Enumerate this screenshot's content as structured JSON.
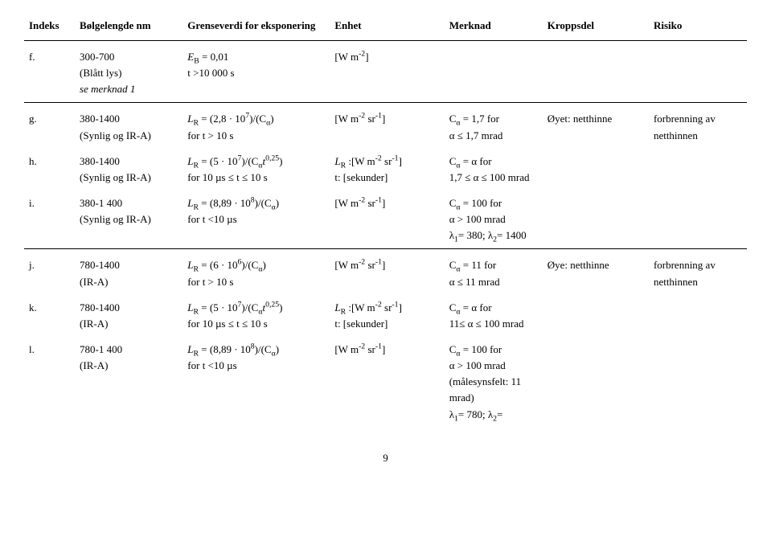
{
  "headers": {
    "indeks": "Indeks",
    "bolge": "Bølgelengde nm",
    "grense": "Grenseverdi for eksponering",
    "enhet": "Enhet",
    "merknad": "Merknad",
    "kroppsdel": "Kroppsdel",
    "risiko": "Risiko"
  },
  "rows": {
    "f": {
      "idx": "f.",
      "wave1": "300-700",
      "wave2": "(Blått lys)",
      "wave3": "se merknad 1",
      "limit1_a": "E",
      "limit1_b": "B",
      "limit1_c": " = 0,01",
      "limit2": "t >10 000 s",
      "unit1_a": "[W m",
      "unit1_b": "-2",
      "unit1_c": "]"
    },
    "g": {
      "idx": "g.",
      "wave1": "380-1400",
      "wave2": "(Synlig og IR-A)",
      "limit1_a": "L",
      "limit1_b": "R",
      "limit1_c": " = (2,8 · 10",
      "limit1_d": "7",
      "limit1_e": ")/(C",
      "limit1_f": "α",
      "limit1_g": ")",
      "limit2": "for t > 10 s",
      "unit1_a": "[W m",
      "unit1_b": "-2",
      "unit1_c": " sr",
      "unit1_d": "-1",
      "unit1_e": "]",
      "note1_a": "C",
      "note1_b": "α",
      "note1_c": " = 1,7 for",
      "note2": "α ≤ 1,7 mrad",
      "body": "Øyet: netthinne",
      "risk": "forbrenning av netthinnen"
    },
    "h": {
      "idx": "h.",
      "wave1": "380-1400",
      "wave2": "(Synlig og IR-A)",
      "limit1_a": "L",
      "limit1_b": "R",
      "limit1_c": " = (5 · 10",
      "limit1_d": "7",
      "limit1_e": ")/(C",
      "limit1_f": "α",
      "limit1_g": "t",
      "limit1_h": "0,25",
      "limit1_i": ")",
      "limit2": "for 10 µs ≤ t ≤ 10 s",
      "unit1_a": "L",
      "unit1_b": "R",
      "unit1_c": " :[W m",
      "unit1_d": "-2",
      "unit1_e": " sr",
      "unit1_f": "-1",
      "unit1_g": "]",
      "unit2": "t: [sekunder]",
      "note1_a": "C",
      "note1_b": "α",
      "note1_c": " = α for",
      "note2": "1,7 ≤ α ≤ 100 mrad"
    },
    "i": {
      "idx": "i.",
      "wave1": "380-1 400",
      "wave2": "(Synlig og IR-A)",
      "limit1_a": "L",
      "limit1_b": "R",
      "limit1_c": " = (8,89 · 10",
      "limit1_d": "8",
      "limit1_e": ")/(C",
      "limit1_f": "α",
      "limit1_g": ")",
      "limit2": "for t <10 µs",
      "unit1_a": "[W m",
      "unit1_b": "-2",
      "unit1_c": " sr",
      "unit1_d": "-1",
      "unit1_e": "]",
      "note1_a": "C",
      "note1_b": "α",
      "note1_c": " = 100 for",
      "note2": "α > 100 mrad",
      "note3_a": "λ",
      "note3_b": "1",
      "note3_c": "= 380; λ",
      "note3_d": "2",
      "note3_e": "= 1400"
    },
    "j": {
      "idx": "j.",
      "wave1": "780-1400",
      "wave2": "(IR-A)",
      "limit1_a": "L",
      "limit1_b": "R",
      "limit1_c": " = (6 · 10",
      "limit1_d": "6",
      "limit1_e": ")/(C",
      "limit1_f": "α",
      "limit1_g": ")",
      "limit2": "for t > 10 s",
      "unit1_a": "[W m",
      "unit1_b": "-2",
      "unit1_c": " sr",
      "unit1_d": "-1",
      "unit1_e": "]",
      "note1_a": "C",
      "note1_b": "α",
      "note1_c": " = 11 for",
      "note2": "α ≤ 11 mrad",
      "body": "Øye: netthinne",
      "risk": "forbrenning av netthinnen"
    },
    "k": {
      "idx": "k.",
      "wave1": "780-1400",
      "wave2": "(IR-A)",
      "limit1_a": "L",
      "limit1_b": "R",
      "limit1_c": " = (5 · 10",
      "limit1_d": "7",
      "limit1_e": ")/(C",
      "limit1_f": "α",
      "limit1_g": "t",
      "limit1_h": "0,25",
      "limit1_i": ")",
      "limit2": "for 10 µs ≤ t ≤ 10 s",
      "unit1_a": "L",
      "unit1_b": "R",
      "unit1_c": " :[W m",
      "unit1_d": "-2",
      "unit1_e": " sr",
      "unit1_f": "-1",
      "unit1_g": "]",
      "unit2": "t: [sekunder]",
      "note1_a": "C",
      "note1_b": "α",
      "note1_c": " = α for",
      "note2": "11≤ α ≤ 100 mrad"
    },
    "l": {
      "idx": "l.",
      "wave1": "780-1 400",
      "wave2": "(IR-A)",
      "limit1_a": "L",
      "limit1_b": "R",
      "limit1_c": " = (8,89 · 10",
      "limit1_d": "8",
      "limit1_e": ")/(C",
      "limit1_f": "α",
      "limit1_g": ")",
      "limit2": "for t <10 µs",
      "unit1_a": "[W m",
      "unit1_b": "-2",
      "unit1_c": " sr",
      "unit1_d": "-1",
      "unit1_e": "]",
      "note1_a": "C",
      "note1_b": "α",
      "note1_c": " = 100 for",
      "note2": "α > 100 mrad",
      "note3": "(målesynsfelt: 11 mrad)",
      "note4_a": "λ",
      "note4_b": "1",
      "note4_c": "= 780; λ",
      "note4_d": "2",
      "note4_e": "="
    }
  },
  "pagenum": "9"
}
